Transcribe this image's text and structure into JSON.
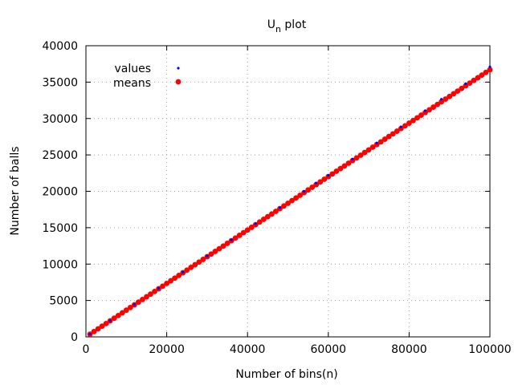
{
  "chart_data": {
    "type": "scatter",
    "title": {
      "base": "U",
      "sub": "n",
      "rest": " plot"
    },
    "xlabel": "Number of bins(n)",
    "ylabel": "Number of balls",
    "xlim": [
      0,
      100000
    ],
    "ylim": [
      0,
      40000
    ],
    "xticks": [
      0,
      20000,
      40000,
      60000,
      80000,
      100000
    ],
    "yticks": [
      0,
      5000,
      10000,
      15000,
      20000,
      25000,
      30000,
      35000,
      40000
    ],
    "grid": true,
    "legend_position": "top-left",
    "series": [
      {
        "name": "values",
        "color": "#0000ff",
        "marker": "small-dot",
        "x": [
          1000,
          6000,
          12000,
          18000,
          24000,
          30000,
          36000,
          42000,
          48000,
          54000,
          57000,
          60000,
          66000,
          72000,
          78000,
          84000,
          88000,
          94000,
          100000
        ],
        "y": [
          370,
          2220,
          4440,
          6660,
          8880,
          11100,
          13320,
          15540,
          17760,
          19980,
          21150,
          22200,
          24420,
          26640,
          28860,
          31080,
          32650,
          34780,
          37100
        ]
      },
      {
        "name": "means",
        "color": "#ff0000",
        "marker": "large-dot",
        "x": [
          1000,
          2000,
          3000,
          4000,
          5000,
          6000,
          7000,
          8000,
          9000,
          10000,
          11000,
          12000,
          13000,
          14000,
          15000,
          16000,
          17000,
          18000,
          19000,
          20000,
          21000,
          22000,
          23000,
          24000,
          25000,
          26000,
          27000,
          28000,
          29000,
          30000,
          31000,
          32000,
          33000,
          34000,
          35000,
          36000,
          37000,
          38000,
          39000,
          40000,
          41000,
          42000,
          43000,
          44000,
          45000,
          46000,
          47000,
          48000,
          49000,
          50000,
          51000,
          52000,
          53000,
          54000,
          55000,
          56000,
          57000,
          58000,
          59000,
          60000,
          61000,
          62000,
          63000,
          64000,
          65000,
          66000,
          67000,
          68000,
          69000,
          70000,
          71000,
          72000,
          73000,
          74000,
          75000,
          76000,
          77000,
          78000,
          79000,
          80000,
          81000,
          82000,
          83000,
          84000,
          85000,
          86000,
          87000,
          88000,
          89000,
          90000,
          91000,
          92000,
          93000,
          94000,
          95000,
          96000,
          97000,
          98000,
          99000,
          100000
        ],
        "y": [
          367,
          734,
          1101,
          1468,
          1835,
          2202,
          2569,
          2936,
          3303,
          3670,
          4037,
          4404,
          4771,
          5138,
          5505,
          5872,
          6239,
          6606,
          6973,
          7340,
          7707,
          8074,
          8441,
          8808,
          9175,
          9542,
          9909,
          10276,
          10643,
          11010,
          11377,
          11744,
          12111,
          12478,
          12845,
          13212,
          13579,
          13946,
          14313,
          14680,
          15047,
          15414,
          15781,
          16148,
          16515,
          16882,
          17249,
          17616,
          17983,
          18350,
          18717,
          19084,
          19451,
          19818,
          20185,
          20552,
          20919,
          21286,
          21653,
          22020,
          22387,
          22754,
          23121,
          23488,
          23855,
          24222,
          24589,
          24956,
          25323,
          25690,
          26057,
          26424,
          26791,
          27158,
          27525,
          27892,
          28259,
          28626,
          28993,
          29360,
          29727,
          30094,
          30461,
          30828,
          31195,
          31562,
          31929,
          32296,
          32663,
          33030,
          33397,
          33764,
          34131,
          34498,
          34865,
          35232,
          35599,
          35966,
          36333,
          36700
        ]
      }
    ]
  }
}
